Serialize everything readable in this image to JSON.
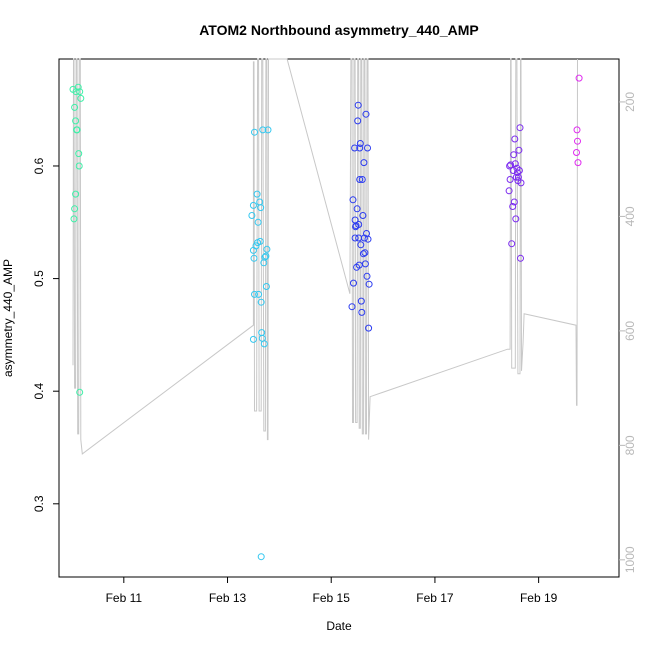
{
  "chart_data": {
    "type": "scatter",
    "title": "ATOM2 Northbound asymmetry_440_AMP",
    "xlabel": "Date",
    "ylabel": "asymmetry_440_AMP",
    "x_axis": {
      "unit": "days (February)",
      "range": [
        9.75,
        20.55
      ],
      "ticks": [
        11,
        13,
        15,
        17,
        19
      ],
      "tick_labels": [
        "Feb 11",
        "Feb 13",
        "Feb 15",
        "Feb 17",
        "Feb 19"
      ]
    },
    "y_axis": {
      "range": [
        0.235,
        0.695
      ],
      "ticks": [
        0.3,
        0.4,
        0.5,
        0.6
      ],
      "tick_labels": [
        "0.3",
        "0.4",
        "0.5",
        "0.6"
      ]
    },
    "y2_axis": {
      "description": "secondary axis (gray), inverted, for the gray depth/pressure trace",
      "range_top_to_bottom": [
        125,
        1030
      ],
      "ticks": [
        200,
        400,
        600,
        800,
        1000
      ],
      "tick_labels": [
        "200",
        "400",
        "600",
        "800",
        "1000"
      ],
      "color": "#b8b8b8"
    },
    "grid": false,
    "legend": "none",
    "colors": {
      "series": [
        "#3ef0a8",
        "#34c8f0",
        "#2c3cf0",
        "#7c2cf0",
        "#e02cf0"
      ],
      "trace": "#c8c8c8"
    },
    "series": [
      {
        "points": [
          [
            10.02,
            0.668
          ],
          [
            10.05,
            0.652
          ],
          [
            10.07,
            0.64
          ],
          [
            10.08,
            0.666
          ],
          [
            10.09,
            0.632
          ],
          [
            10.1,
            0.632
          ],
          [
            10.12,
            0.67
          ],
          [
            10.13,
            0.611
          ],
          [
            10.14,
            0.6
          ],
          [
            10.15,
            0.666
          ],
          [
            10.17,
            0.66
          ],
          [
            10.07,
            0.575
          ],
          [
            10.05,
            0.562
          ],
          [
            10.04,
            0.553
          ],
          [
            10.15,
            0.399
          ]
        ]
      },
      {
        "points": [
          [
            13.47,
            0.556
          ],
          [
            13.5,
            0.565
          ],
          [
            13.52,
            0.63
          ],
          [
            13.5,
            0.525
          ],
          [
            13.51,
            0.518
          ],
          [
            13.52,
            0.486
          ],
          [
            13.5,
            0.446
          ],
          [
            13.55,
            0.529
          ],
          [
            13.57,
            0.575
          ],
          [
            13.58,
            0.532
          ],
          [
            13.59,
            0.55
          ],
          [
            13.6,
            0.486
          ],
          [
            13.62,
            0.568
          ],
          [
            13.63,
            0.533
          ],
          [
            13.64,
            0.563
          ],
          [
            13.65,
            0.479
          ],
          [
            13.66,
            0.452
          ],
          [
            13.67,
            0.447
          ],
          [
            13.68,
            0.632
          ],
          [
            13.7,
            0.514
          ],
          [
            13.71,
            0.442
          ],
          [
            13.72,
            0.519
          ],
          [
            13.74,
            0.52
          ],
          [
            13.75,
            0.493
          ],
          [
            13.76,
            0.526
          ],
          [
            13.78,
            0.632
          ],
          [
            13.65,
            0.253
          ]
        ]
      },
      {
        "points": [
          [
            15.4,
            0.475
          ],
          [
            15.42,
            0.57
          ],
          [
            15.43,
            0.496
          ],
          [
            15.45,
            0.616
          ],
          [
            15.46,
            0.536
          ],
          [
            15.47,
            0.546
          ],
          [
            15.48,
            0.547
          ],
          [
            15.49,
            0.51
          ],
          [
            15.5,
            0.562
          ],
          [
            15.51,
            0.64
          ],
          [
            15.52,
            0.654
          ],
          [
            15.53,
            0.548
          ],
          [
            15.54,
            0.512
          ],
          [
            15.55,
            0.588
          ],
          [
            15.56,
            0.62
          ],
          [
            15.57,
            0.53
          ],
          [
            15.58,
            0.48
          ],
          [
            15.59,
            0.47
          ],
          [
            15.6,
            0.588
          ],
          [
            15.61,
            0.556
          ],
          [
            15.62,
            0.522
          ],
          [
            15.63,
            0.603
          ],
          [
            15.64,
            0.536
          ],
          [
            15.65,
            0.523
          ],
          [
            15.66,
            0.513
          ],
          [
            15.67,
            0.646
          ],
          [
            15.68,
            0.54
          ],
          [
            15.69,
            0.502
          ],
          [
            15.7,
            0.616
          ],
          [
            15.72,
            0.456
          ],
          [
            15.73,
            0.495
          ],
          [
            15.55,
            0.616
          ],
          [
            15.46,
            0.552
          ],
          [
            15.53,
            0.536
          ],
          [
            15.71,
            0.535
          ]
        ]
      },
      {
        "points": [
          [
            18.43,
            0.578
          ],
          [
            18.44,
            0.6
          ],
          [
            18.45,
            0.588
          ],
          [
            18.46,
            0.601
          ],
          [
            18.48,
            0.531
          ],
          [
            18.5,
            0.564
          ],
          [
            18.51,
            0.596
          ],
          [
            18.52,
            0.61
          ],
          [
            18.53,
            0.568
          ],
          [
            18.54,
            0.624
          ],
          [
            18.55,
            0.602
          ],
          [
            18.56,
            0.553
          ],
          [
            18.57,
            0.59
          ],
          [
            18.58,
            0.598
          ],
          [
            18.59,
            0.594
          ],
          [
            18.6,
            0.587
          ],
          [
            18.61,
            0.59
          ],
          [
            18.62,
            0.614
          ],
          [
            18.63,
            0.596
          ],
          [
            18.64,
            0.634
          ],
          [
            18.65,
            0.518
          ],
          [
            18.66,
            0.585
          ]
        ]
      },
      {
        "points": [
          [
            19.73,
            0.612
          ],
          [
            19.74,
            0.632
          ],
          [
            19.75,
            0.622
          ],
          [
            19.76,
            0.603
          ],
          [
            19.78,
            0.678
          ]
        ]
      }
    ],
    "trace": {
      "description": "gray profile line plotted against the secondary (right) axis",
      "points": [
        [
          10.02,
          660
        ],
        [
          10.03,
          121
        ],
        [
          10.04,
          121
        ],
        [
          10.05,
          700
        ],
        [
          10.07,
          700
        ],
        [
          10.08,
          121
        ],
        [
          10.1,
          121
        ],
        [
          10.11,
          780
        ],
        [
          10.13,
          780
        ],
        [
          10.14,
          121
        ],
        [
          10.16,
          121
        ],
        [
          10.17,
          790
        ],
        [
          10.2,
          815
        ],
        [
          13.5,
          590
        ],
        [
          13.5,
          130
        ],
        [
          13.51,
          130
        ],
        [
          13.52,
          740
        ],
        [
          13.55,
          740
        ],
        [
          13.56,
          740
        ],
        [
          13.58,
          121
        ],
        [
          13.6,
          121
        ],
        [
          13.61,
          740
        ],
        [
          13.65,
          740
        ],
        [
          13.66,
          121
        ],
        [
          13.68,
          121
        ],
        [
          13.7,
          775
        ],
        [
          13.73,
          775
        ],
        [
          13.74,
          121
        ],
        [
          13.76,
          121
        ],
        [
          13.77,
          790
        ],
        [
          13.78,
          790
        ],
        [
          13.79,
          121
        ],
        [
          14.15,
          121
        ],
        [
          15.36,
          535
        ],
        [
          15.38,
          121
        ],
        [
          15.4,
          121
        ],
        [
          15.41,
          760
        ],
        [
          15.43,
          760
        ],
        [
          15.44,
          121
        ],
        [
          15.46,
          121
        ],
        [
          15.47,
          760
        ],
        [
          15.5,
          760
        ],
        [
          15.51,
          121
        ],
        [
          15.53,
          121
        ],
        [
          15.54,
          770
        ],
        [
          15.56,
          770
        ],
        [
          15.57,
          121
        ],
        [
          15.59,
          121
        ],
        [
          15.6,
          780
        ],
        [
          15.62,
          780
        ],
        [
          15.63,
          121
        ],
        [
          15.65,
          121
        ],
        [
          15.66,
          780
        ],
        [
          15.68,
          780
        ],
        [
          15.69,
          121
        ],
        [
          15.71,
          121
        ],
        [
          15.72,
          790
        ],
        [
          15.75,
          715
        ],
        [
          18.4,
          632
        ],
        [
          18.45,
          632
        ],
        [
          18.46,
          121
        ],
        [
          18.47,
          121
        ],
        [
          18.48,
          665
        ],
        [
          18.55,
          665
        ],
        [
          18.56,
          121
        ],
        [
          18.58,
          121
        ],
        [
          18.6,
          675
        ],
        [
          18.64,
          675
        ],
        [
          18.65,
          121
        ],
        [
          18.66,
          121
        ],
        [
          18.67,
          670
        ],
        [
          18.7,
          620
        ],
        [
          18.72,
          570
        ],
        [
          19.72,
          590
        ],
        [
          19.73,
          730
        ],
        [
          19.74,
          730
        ],
        [
          19.75,
          121
        ]
      ]
    }
  }
}
